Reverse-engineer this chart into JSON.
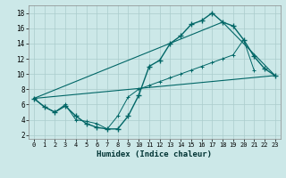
{
  "xlabel": "Humidex (Indice chaleur)",
  "bg_color": "#cce8e8",
  "grid_color": "#aacccc",
  "line_color": "#006666",
  "xlim": [
    -0.5,
    23.5
  ],
  "ylim": [
    1.5,
    19.0
  ],
  "xticks": [
    0,
    1,
    2,
    3,
    4,
    5,
    6,
    7,
    8,
    9,
    10,
    11,
    12,
    13,
    14,
    15,
    16,
    17,
    18,
    19,
    20,
    21,
    22,
    23
  ],
  "yticks": [
    2,
    4,
    6,
    8,
    10,
    12,
    14,
    16,
    18
  ],
  "series_main": {
    "x": [
      0,
      1,
      2,
      3,
      4,
      5,
      6,
      7,
      8,
      9,
      10,
      11,
      12,
      13,
      14,
      15,
      16,
      17,
      18,
      19,
      20,
      21,
      22,
      23
    ],
    "y": [
      6.8,
      5.7,
      5.0,
      5.8,
      4.5,
      3.5,
      3.0,
      2.8,
      2.8,
      4.5,
      7.2,
      11.0,
      11.8,
      14.0,
      15.0,
      16.5,
      17.0,
      18.0,
      16.8,
      16.3,
      14.5,
      12.3,
      10.7,
      9.8
    ]
  },
  "series_lower": {
    "x": [
      0,
      1,
      2,
      3,
      4,
      5,
      6,
      7,
      8,
      9,
      10,
      11,
      12,
      13,
      14,
      15,
      16,
      17,
      18,
      19,
      20,
      21,
      22,
      23
    ],
    "y": [
      6.8,
      5.7,
      5.0,
      6.0,
      4.0,
      3.8,
      3.5,
      2.8,
      4.5,
      7.0,
      8.0,
      8.5,
      9.0,
      9.5,
      10.0,
      10.5,
      11.0,
      11.5,
      12.0,
      12.5,
      14.5,
      10.5,
      null,
      9.8
    ]
  },
  "line_bottom": {
    "x": [
      0,
      23
    ],
    "y": [
      6.8,
      9.8
    ]
  },
  "line_top": {
    "x": [
      0,
      18,
      23
    ],
    "y": [
      6.8,
      16.8,
      9.8
    ]
  }
}
